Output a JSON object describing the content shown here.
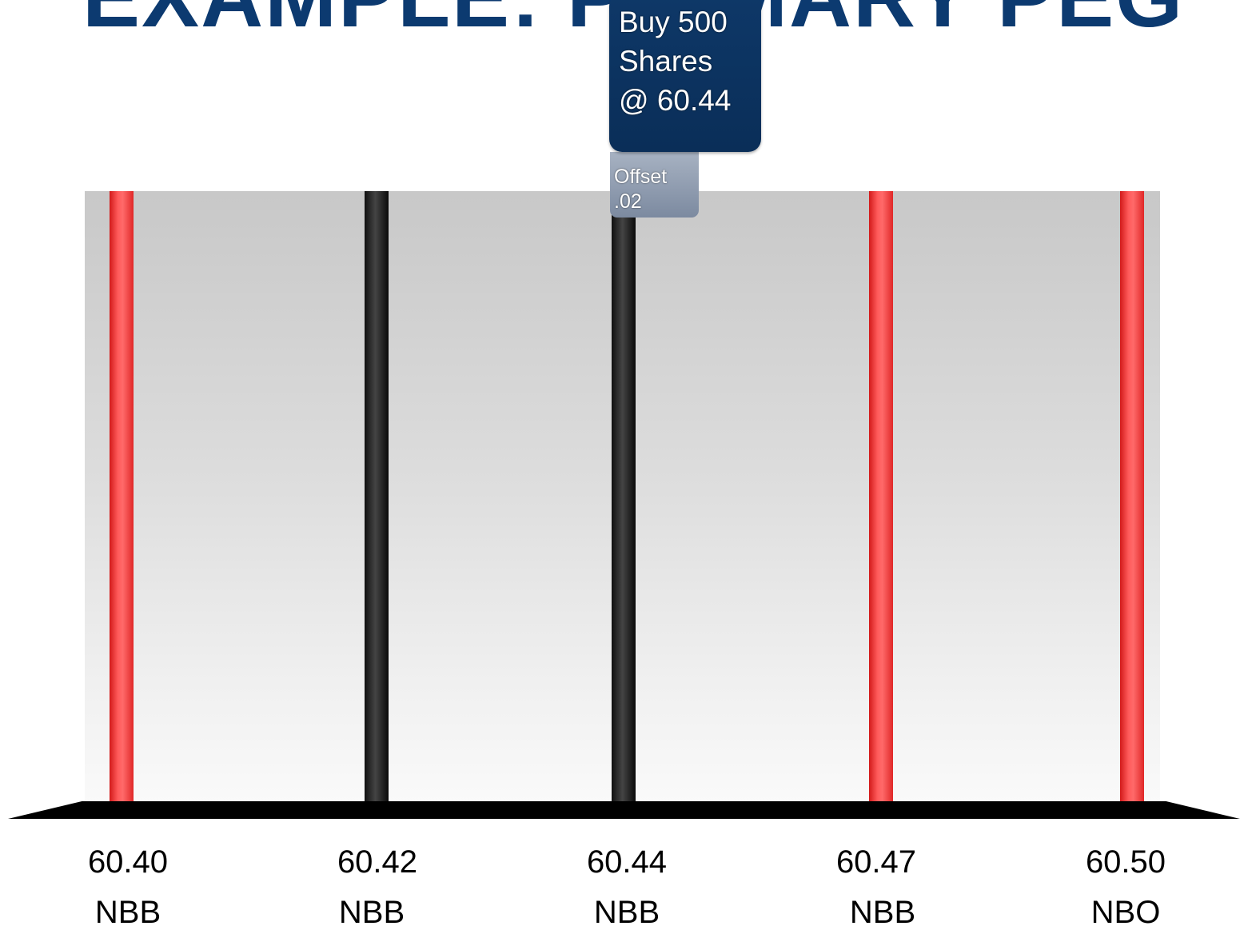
{
  "title": "EXAMPLE: PRIMARY PEG",
  "order": {
    "line1": "Buy 500",
    "line2": "Shares",
    "line3": "@ 60.44"
  },
  "offset": {
    "label": "Offset",
    "value": ".02"
  },
  "colors": {
    "title": "#0c3a70",
    "order_box": "#0b325f",
    "offset_tag": "#8a96aa",
    "bar_red": "#ff4444",
    "bar_black": "#1a1a1a"
  },
  "levels": [
    {
      "price": "60.40",
      "side": "NBB",
      "color": "red"
    },
    {
      "price": "60.42",
      "side": "NBB",
      "color": "black"
    },
    {
      "price": "60.44",
      "side": "NBB",
      "color": "black"
    },
    {
      "price": "60.47",
      "side": "NBB",
      "color": "red"
    },
    {
      "price": "60.50",
      "side": "NBO",
      "color": "red"
    }
  ]
}
